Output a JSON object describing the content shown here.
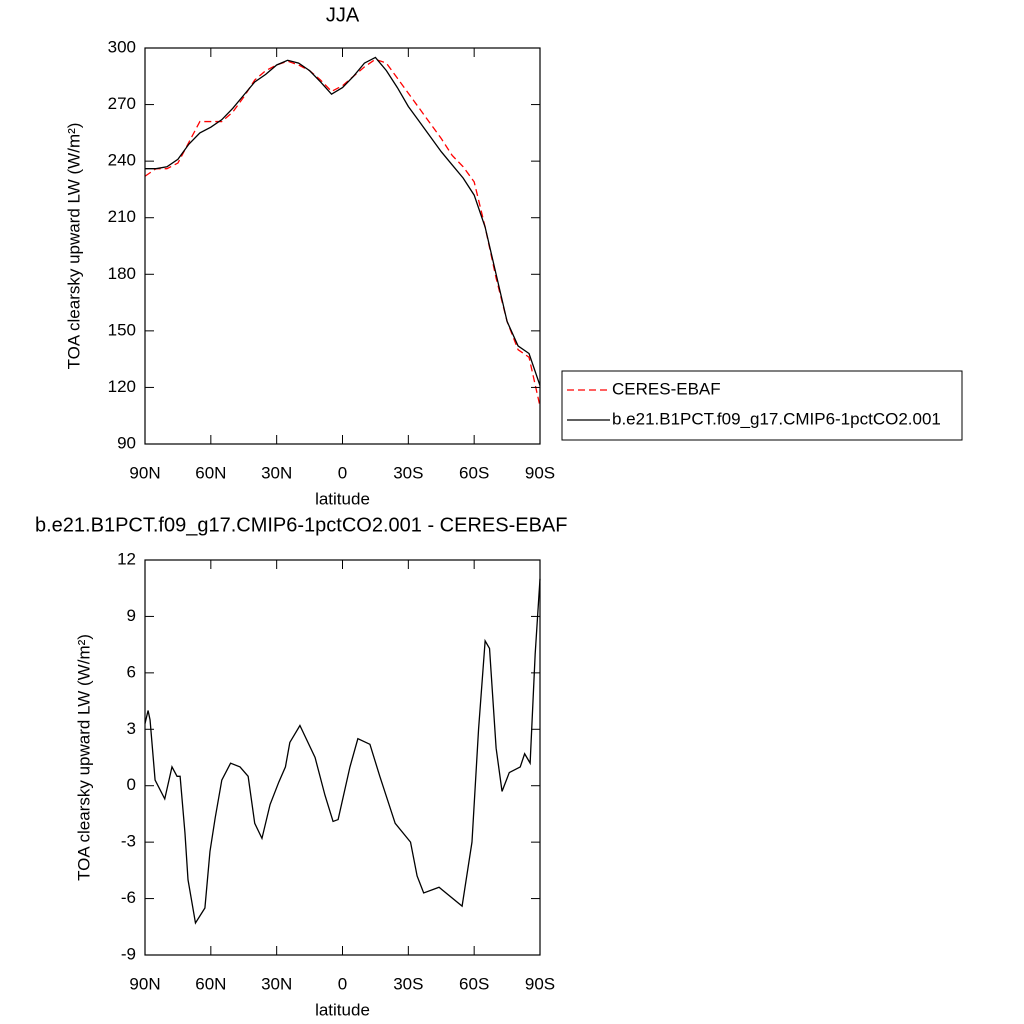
{
  "chart_data": [
    {
      "type": "line",
      "title": "JJA",
      "x_label": "latitude",
      "y_label": "TOA clearsky upward LW (W/m²)",
      "x": [
        90,
        85,
        80,
        75,
        70,
        65,
        60,
        55,
        50,
        45,
        40,
        35,
        30,
        25,
        20,
        15,
        10,
        5,
        0,
        -5,
        -10,
        -15,
        -20,
        -25,
        -30,
        -35,
        -40,
        -45,
        -50,
        -55,
        -60,
        -65,
        -70,
        -75,
        -80,
        -85,
        -90
      ],
      "series": [
        {
          "name": "CERES-EBAF",
          "color": "#ff0000",
          "dash": "dashed",
          "values": [
            232,
            236,
            236,
            239,
            250,
            261,
            261,
            261,
            266,
            274,
            283,
            288,
            291,
            293,
            291,
            288,
            283,
            277,
            280,
            285,
            290,
            294,
            292,
            284,
            276,
            268,
            260,
            252,
            243,
            237,
            229,
            205,
            178,
            155,
            140,
            136,
            110
          ]
        },
        {
          "name": "b.e21.B1PCT.f09_g17.CMIP6-1pctCO2.001",
          "color": "#000000",
          "dash": "solid",
          "values": [
            236,
            236,
            237,
            241,
            249,
            255,
            258,
            262,
            268,
            275,
            282,
            286,
            291,
            293.5,
            292,
            288,
            282,
            275.5,
            279,
            285,
            292,
            295,
            288,
            279,
            269,
            261,
            253,
            245,
            238,
            231,
            222,
            205,
            180,
            155,
            142,
            138,
            121
          ]
        }
      ],
      "xlim": [
        90,
        -90
      ],
      "xticks": [
        {
          "value": 90,
          "label": "90N"
        },
        {
          "value": 60,
          "label": "60N"
        },
        {
          "value": 30,
          "label": "30N"
        },
        0,
        {
          "value": -30,
          "label": "30S"
        },
        {
          "value": -60,
          "label": "60S"
        },
        {
          "value": -90,
          "label": "90S"
        }
      ],
      "ylim": [
        90,
        300
      ],
      "yticks": [
        90,
        120,
        150,
        180,
        210,
        240,
        270,
        300
      ],
      "legend": "right"
    },
    {
      "type": "line",
      "title": "b.e21.B1PCT.f09_g17.CMIP6-1pctCO2.001 - CERES-EBAF",
      "x_label": "latitude",
      "y_label": "TOA clearsky upward LW (W/m²)",
      "x": [
        90,
        88.6,
        87.7,
        85.4,
        81,
        77.7,
        75.4,
        74,
        71.8,
        70.4,
        67,
        62.7,
        60.4,
        58,
        55,
        51,
        46.7,
        43,
        40,
        36.7,
        33,
        29,
        26,
        24,
        19.4,
        12.5,
        8,
        4.3,
        2,
        -3.4,
        -7,
        -12.5,
        -17,
        -24,
        -31,
        -34,
        -37,
        -44,
        -54.5,
        -59,
        -62,
        -65,
        -67,
        -70,
        -72.7,
        -76,
        -81,
        -83,
        -85.5,
        -87.8,
        -90
      ],
      "series": [
        {
          "color": "#000000",
          "dash": "solid",
          "values": [
            3.3,
            4.0,
            3.5,
            0.3,
            -0.7,
            1.0,
            0.5,
            0.5,
            -2.5,
            -5.0,
            -7.3,
            -6.5,
            -3.5,
            -1.7,
            0.3,
            1.2,
            1.0,
            0.5,
            -2.0,
            -2.8,
            -1.0,
            0.2,
            1.0,
            2.3,
            3.2,
            1.5,
            -0.5,
            -1.9,
            -1.8,
            1.0,
            2.5,
            2.2,
            0.5,
            -2.0,
            -3.0,
            -4.8,
            -5.7,
            -5.4,
            -6.4,
            -3,
            3,
            7.7,
            7.3,
            2,
            -0.3,
            0.7,
            1.0,
            1.7,
            1.2,
            7,
            11
          ]
        }
      ],
      "xlim": [
        90,
        -90
      ],
      "xticks": [
        {
          "value": 90,
          "label": "90N"
        },
        {
          "value": 60,
          "label": "60N"
        },
        {
          "value": 30,
          "label": "30N"
        },
        0,
        {
          "value": -30,
          "label": "30S"
        },
        {
          "value": -60,
          "label": "60S"
        },
        {
          "value": -90,
          "label": "90S"
        }
      ],
      "ylim": [
        -9,
        12
      ],
      "yticks": [
        -9,
        -6,
        -3,
        0,
        3,
        6,
        9,
        12
      ]
    }
  ]
}
